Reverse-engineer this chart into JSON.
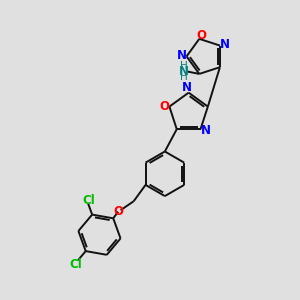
{
  "bg_color": "#e0e0e0",
  "bond_color": "#111111",
  "N_color": "#0000ff",
  "O_color": "#ff0000",
  "Cl_color": "#00bb00",
  "NH2_color": "#008080",
  "bond_width": 1.4,
  "dbo": 0.035,
  "figsize": [
    3.0,
    3.0
  ],
  "dpi": 100,
  "xlim": [
    0,
    10
  ],
  "ylim": [
    0,
    10
  ]
}
